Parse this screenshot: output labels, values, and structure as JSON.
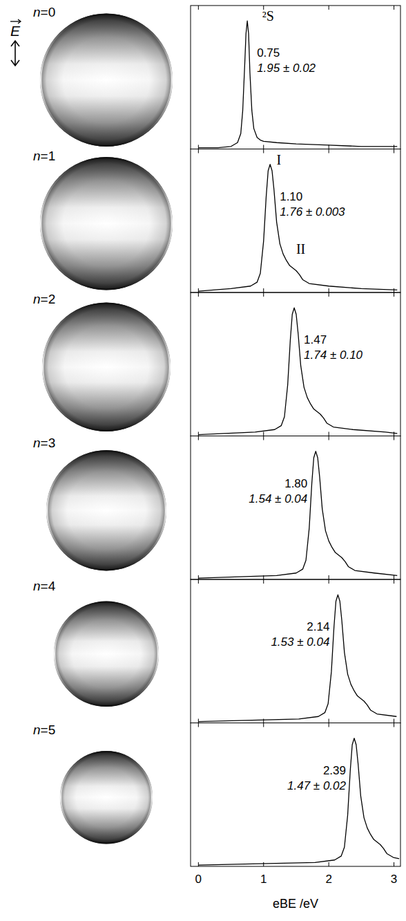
{
  "polarization_label": "E",
  "chart_data": [
    {
      "type": "line",
      "label": "n=0",
      "color": "#000000",
      "x": [
        0,
        0.3,
        0.5,
        0.6,
        0.65,
        0.68,
        0.71,
        0.73,
        0.75,
        0.77,
        0.79,
        0.82,
        0.85,
        0.9,
        0.95,
        1.0,
        1.2,
        1.5,
        2.0,
        2.5,
        3.05
      ],
      "values": [
        0.01,
        0.01,
        0.02,
        0.05,
        0.12,
        0.3,
        0.65,
        0.9,
        1.0,
        0.9,
        0.6,
        0.3,
        0.16,
        0.09,
        0.07,
        0.06,
        0.05,
        0.04,
        0.03,
        0.02,
        0.02
      ],
      "xlim": [
        -0.12,
        3.1
      ],
      "ylim": [
        0,
        1.12
      ],
      "xticks": [
        0,
        1,
        2,
        3
      ],
      "tick_labels": false,
      "peak": {
        "value": 0.75,
        "label": "0.75"
      },
      "beta_label": "1.95 ± 0.02",
      "annotations": [
        {
          "text": "²S",
          "x": 0.98,
          "y": 1.0
        }
      ]
    },
    {
      "type": "line",
      "label": "n=1",
      "color": "#000000",
      "x": [
        0,
        0.5,
        0.8,
        0.9,
        0.95,
        1.0,
        1.04,
        1.07,
        1.1,
        1.13,
        1.16,
        1.2,
        1.25,
        1.3,
        1.35,
        1.4,
        1.45,
        1.5,
        1.55,
        1.6,
        1.7,
        2.0,
        2.5,
        3.05
      ],
      "values": [
        0.01,
        0.03,
        0.05,
        0.08,
        0.15,
        0.4,
        0.75,
        0.95,
        1.0,
        0.95,
        0.8,
        0.55,
        0.38,
        0.3,
        0.25,
        0.21,
        0.19,
        0.17,
        0.14,
        0.1,
        0.07,
        0.05,
        0.03,
        0.02
      ],
      "xlim": [
        -0.12,
        3.1
      ],
      "ylim": [
        0,
        1.12
      ],
      "xticks": [
        0,
        1,
        2,
        3
      ],
      "tick_labels": false,
      "peak": {
        "value": 1.1,
        "label": "1.10"
      },
      "beta_label": "1.76 ± 0.003",
      "annotations": [
        {
          "text": "I",
          "x": 1.2,
          "y": 1.0
        },
        {
          "text": "II",
          "x": 1.5,
          "y": 0.3
        }
      ]
    },
    {
      "type": "line",
      "label": "n=2",
      "color": "#000000",
      "x": [
        0,
        0.87,
        1.17,
        1.27,
        1.32,
        1.37,
        1.41,
        1.44,
        1.47,
        1.5,
        1.53,
        1.57,
        1.62,
        1.67,
        1.72,
        1.77,
        1.82,
        1.87,
        1.92,
        1.97,
        2.07,
        2.37,
        2.87,
        3.05
      ],
      "values": [
        0.01,
        0.03,
        0.05,
        0.08,
        0.15,
        0.4,
        0.75,
        0.95,
        1.0,
        0.95,
        0.8,
        0.55,
        0.38,
        0.3,
        0.25,
        0.21,
        0.19,
        0.17,
        0.14,
        0.1,
        0.07,
        0.05,
        0.03,
        0.02
      ],
      "xlim": [
        -0.12,
        3.1
      ],
      "ylim": [
        0,
        1.12
      ],
      "xticks": [
        0,
        1,
        2,
        3
      ],
      "tick_labels": false,
      "peak": {
        "value": 1.47,
        "label": "1.47"
      },
      "beta_label": "1.74 ± 0.10",
      "annotations": []
    },
    {
      "type": "line",
      "label": "n=3",
      "color": "#000000",
      "x": [
        0,
        1.2,
        1.5,
        1.6,
        1.65,
        1.7,
        1.74,
        1.77,
        1.8,
        1.83,
        1.86,
        1.9,
        1.95,
        2.0,
        2.05,
        2.1,
        2.15,
        2.2,
        2.25,
        2.3,
        2.4,
        2.7,
        3.05
      ],
      "values": [
        0.01,
        0.03,
        0.05,
        0.08,
        0.15,
        0.4,
        0.75,
        0.95,
        1.0,
        0.95,
        0.8,
        0.55,
        0.38,
        0.3,
        0.25,
        0.21,
        0.19,
        0.17,
        0.14,
        0.1,
        0.07,
        0.05,
        0.03
      ],
      "xlim": [
        -0.12,
        3.1
      ],
      "ylim": [
        0,
        1.12
      ],
      "xticks": [
        0,
        1,
        2,
        3
      ],
      "tick_labels": false,
      "peak": {
        "value": 1.8,
        "label": "1.80"
      },
      "beta_label": "1.54 ± 0.04",
      "annotations": []
    },
    {
      "type": "line",
      "label": "n=4",
      "color": "#000000",
      "x": [
        0,
        1.54,
        1.84,
        1.94,
        1.99,
        2.04,
        2.08,
        2.11,
        2.14,
        2.17,
        2.2,
        2.24,
        2.29,
        2.34,
        2.39,
        2.44,
        2.49,
        2.54,
        2.59,
        2.64,
        2.74,
        3.04
      ],
      "values": [
        0.01,
        0.03,
        0.05,
        0.08,
        0.15,
        0.4,
        0.75,
        0.95,
        1.0,
        0.95,
        0.8,
        0.55,
        0.38,
        0.3,
        0.25,
        0.21,
        0.19,
        0.17,
        0.14,
        0.1,
        0.07,
        0.05
      ],
      "xlim": [
        -0.12,
        3.1
      ],
      "ylim": [
        0,
        1.12
      ],
      "xticks": [
        0,
        1,
        2,
        3
      ],
      "tick_labels": false,
      "peak": {
        "value": 2.14,
        "label": "2.14"
      },
      "beta_label": "1.53 ± 0.04",
      "annotations": []
    },
    {
      "type": "line",
      "label": "n=5",
      "color": "#000000",
      "x": [
        0,
        1.79,
        2.09,
        2.19,
        2.24,
        2.29,
        2.33,
        2.36,
        2.39,
        2.42,
        2.45,
        2.49,
        2.54,
        2.59,
        2.64,
        2.69,
        2.74,
        2.79,
        2.84,
        2.89,
        2.99,
        3.08
      ],
      "values": [
        0.01,
        0.03,
        0.05,
        0.08,
        0.15,
        0.4,
        0.75,
        0.95,
        1.0,
        0.95,
        0.8,
        0.55,
        0.38,
        0.3,
        0.25,
        0.21,
        0.19,
        0.17,
        0.14,
        0.1,
        0.07,
        0.06
      ],
      "xlim": [
        -0.12,
        3.1
      ],
      "ylim": [
        0,
        1.12
      ],
      "xticks": [
        0,
        1,
        2,
        3
      ],
      "tick_labels": "x",
      "x_label": "eBE /eV",
      "peak": {
        "value": 2.39,
        "label": "2.39"
      },
      "beta_label": "1.47 ± 0.02",
      "annotations": []
    }
  ]
}
